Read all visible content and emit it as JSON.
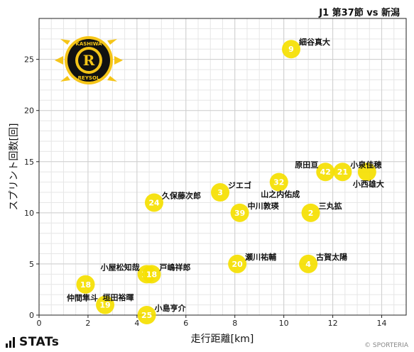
{
  "header": {
    "match": "J1 第37節 vs 新潟"
  },
  "footer": {
    "brand": "STATs",
    "credit": "© SPORTERIA"
  },
  "logo": {
    "text_top": "KASHIWA",
    "text_bottom": "REYSOL",
    "letter": "R",
    "colors": {
      "gold": "#f5c518",
      "black": "#111111"
    }
  },
  "chart_data": {
    "type": "scatter",
    "title": "",
    "xlabel": "走行距離[km]",
    "ylabel": "スプリント回数[回]",
    "xlim": [
      0,
      15
    ],
    "ylim": [
      0,
      29
    ],
    "xticks": [
      0,
      2,
      4,
      6,
      8,
      10,
      12,
      14
    ],
    "yticks": [
      0,
      5,
      10,
      15,
      20,
      25
    ],
    "grid": true,
    "marker_color": "#f5e000",
    "points": [
      {
        "number": "9",
        "name": "細谷真大",
        "x": 10.3,
        "y": 26,
        "label_pos": "right-up"
      },
      {
        "number": "42",
        "name": "原田亘",
        "x": 11.7,
        "y": 14,
        "label_pos": "left-up"
      },
      {
        "number": "21",
        "name": "小泉佳穂",
        "x": 12.4,
        "y": 14,
        "label_pos": "right-up"
      },
      {
        "number": "",
        "name": "小西雄大",
        "x": 13.4,
        "y": 14,
        "label_pos": "down"
      },
      {
        "number": "32",
        "name": "山之内佑成",
        "x": 9.8,
        "y": 13,
        "label_pos": "down"
      },
      {
        "number": "3",
        "name": "ジエゴ",
        "x": 7.4,
        "y": 12,
        "label_pos": "right-up"
      },
      {
        "number": "24",
        "name": "久保藤次郎",
        "x": 4.7,
        "y": 11,
        "label_pos": "right-up"
      },
      {
        "number": "39",
        "name": "中川敦瑛",
        "x": 8.2,
        "y": 10,
        "label_pos": "right-up"
      },
      {
        "number": "2",
        "name": "三丸拡",
        "x": 11.1,
        "y": 10,
        "label_pos": "right-up"
      },
      {
        "number": "20",
        "name": "瀬川祐輔",
        "x": 8.1,
        "y": 5,
        "label_pos": "right-up"
      },
      {
        "number": "4",
        "name": "古賀太陽",
        "x": 11.0,
        "y": 5,
        "label_pos": "right-up"
      },
      {
        "number": "14",
        "name": "小屋松知哉",
        "x": 4.4,
        "y": 4,
        "label_pos": "left-up"
      },
      {
        "number": "18",
        "name": "戸嶋祥郎",
        "x": 4.6,
        "y": 4,
        "label_pos": "right-up"
      },
      {
        "number": "18",
        "name": "垣田裕暉",
        "x": 1.9,
        "y": 3,
        "label_pos": "right-down"
      },
      {
        "number": "19",
        "name": "仲間隼斗",
        "x": 2.7,
        "y": 1,
        "label_pos": "left-up"
      },
      {
        "number": "25",
        "name": "小島亨介",
        "x": 4.4,
        "y": 0,
        "label_pos": "right-up"
      }
    ]
  }
}
